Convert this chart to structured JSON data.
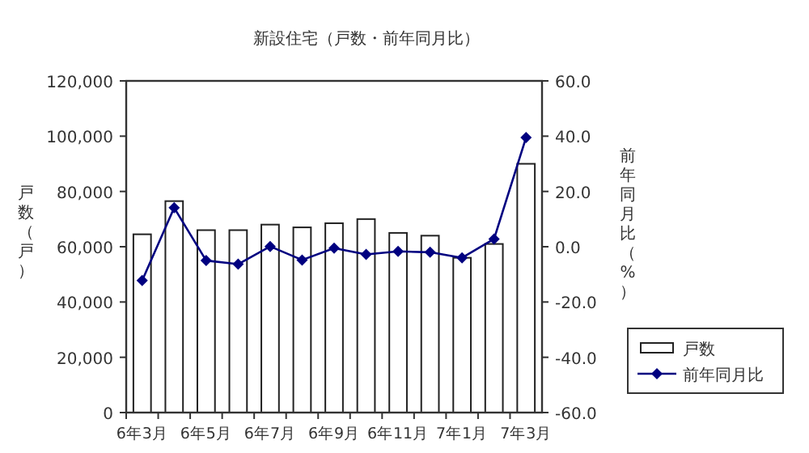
{
  "chart_data": {
    "type": "bar",
    "title": "新設住宅（戸数・前年同月比）",
    "ylabel": "戸数（戸）",
    "y2label": "前年同月比（%）",
    "categories": [
      "6年3月",
      null,
      "6年5月",
      null,
      "6年7月",
      null,
      "6年9月",
      null,
      "6年11月",
      null,
      "7年1月",
      null,
      "7年3月"
    ],
    "series": [
      {
        "name": "戸数",
        "color": "#ffffff",
        "values": [
          64500,
          76500,
          66000,
          66000,
          68000,
          67000,
          68500,
          70000,
          65000,
          64000,
          56000,
          61000,
          90000
        ]
      },
      {
        "name": "前年同月比",
        "type": "line",
        "axis": "y2",
        "color": "#000080",
        "marker": "diamond",
        "values": [
          -12.2,
          14.1,
          -5.0,
          -6.3,
          0.1,
          -4.8,
          -0.5,
          -2.8,
          -1.7,
          -2.0,
          -4.0,
          2.8,
          39.5
        ]
      }
    ],
    "ylim": [
      0,
      120000
    ],
    "yticks": [
      {
        "value": 0,
        "label": "0"
      },
      {
        "value": 20000,
        "label": "20,000"
      },
      {
        "value": 40000,
        "label": "40,000"
      },
      {
        "value": 60000,
        "label": "60,000"
      },
      {
        "value": 80000,
        "label": "80,000"
      },
      {
        "value": 100000,
        "label": "100,000"
      },
      {
        "value": 120000,
        "label": "120,000"
      }
    ],
    "y2lim": [
      -60,
      60
    ],
    "y2ticks": [
      {
        "value": -60,
        "label": "-60.0"
      },
      {
        "value": -40,
        "label": "-40.0"
      },
      {
        "value": -20,
        "label": "-20.0"
      },
      {
        "value": 0,
        "label": "0.0"
      },
      {
        "value": 20,
        "label": "20.0"
      },
      {
        "value": 40,
        "label": "40.0"
      },
      {
        "value": 60,
        "label": "60.0"
      }
    ],
    "legend": "bottom right",
    "grid": false
  }
}
